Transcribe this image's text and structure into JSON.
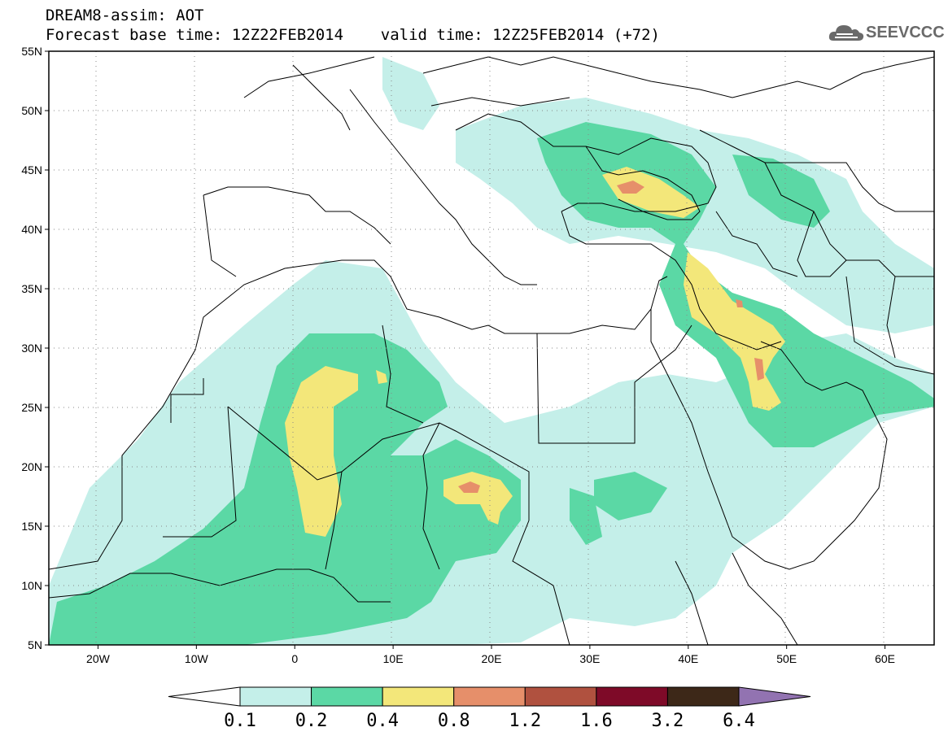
{
  "header": {
    "title_line1": "DREAM8-assim: AOT",
    "title_line2": "Forecast base time: 12Z22FEB2014    valid time: 12Z25FEB2014 (+72)"
  },
  "logo": {
    "text": "SEEVCCC",
    "icon": "cloud-icon"
  },
  "map": {
    "lon_range": [
      -25,
      65
    ],
    "lat_range": [
      5,
      55
    ],
    "lat_ticks": [
      {
        "value": 55,
        "label": "55N"
      },
      {
        "value": 50,
        "label": "50N"
      },
      {
        "value": 45,
        "label": "45N"
      },
      {
        "value": 40,
        "label": "40N"
      },
      {
        "value": 35,
        "label": "35N"
      },
      {
        "value": 30,
        "label": "30N"
      },
      {
        "value": 25,
        "label": "25N"
      },
      {
        "value": 20,
        "label": "20N"
      },
      {
        "value": 15,
        "label": "15N"
      },
      {
        "value": 10,
        "label": "10N"
      },
      {
        "value": 5,
        "label": "5N"
      }
    ],
    "lon_ticks": [
      {
        "value": -20,
        "label": "20W"
      },
      {
        "value": -10,
        "label": "10W"
      },
      {
        "value": 0,
        "label": "0"
      },
      {
        "value": 10,
        "label": "10E"
      },
      {
        "value": 20,
        "label": "20E"
      },
      {
        "value": 30,
        "label": "30E"
      },
      {
        "value": 40,
        "label": "40E"
      },
      {
        "value": 50,
        "label": "50E"
      },
      {
        "value": 60,
        "label": "60E"
      }
    ],
    "grid": "dotted"
  },
  "colorbar": {
    "levels": [
      "0.1",
      "0.2",
      "0.4",
      "0.8",
      "1.2",
      "1.6",
      "3.2",
      "6.4"
    ],
    "colors": [
      "#ffffff",
      "#c4efe9",
      "#5bd8a5",
      "#f3e77a",
      "#e68f6a",
      "#b0513f",
      "#7e0a28",
      "#3d2818",
      "#9273b1"
    ]
  }
}
